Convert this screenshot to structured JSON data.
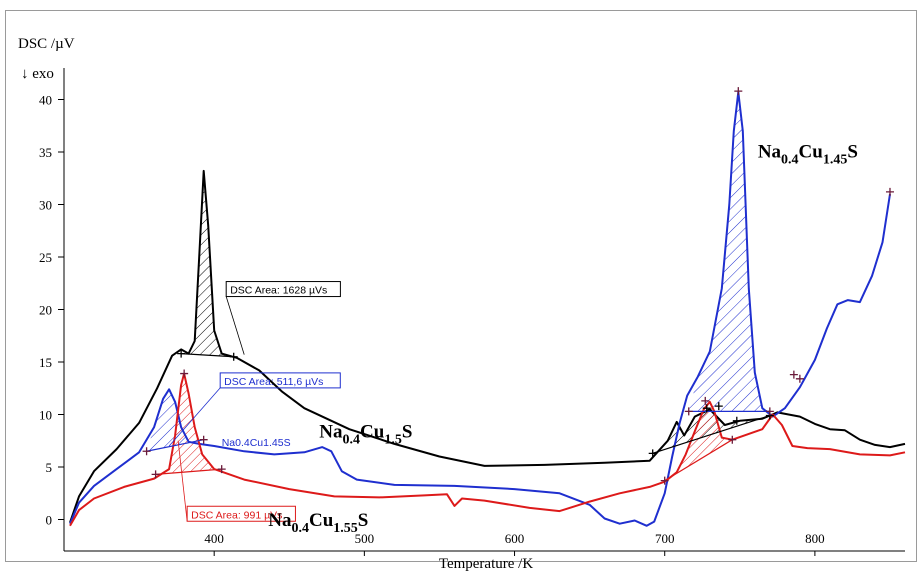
{
  "chart_data": {
    "type": "line",
    "ylabel": "DSC /µV",
    "exo_marker": "↓ exo",
    "xlabel": "Temperature /K",
    "xlim": [
      300,
      860
    ],
    "ylim": [
      -3,
      43
    ],
    "x_ticks": [
      400,
      500,
      600,
      700,
      800
    ],
    "y_ticks": [
      0,
      5,
      10,
      15,
      20,
      25,
      30,
      35,
      40
    ],
    "colors": {
      "black": "#000000",
      "blue": "#1f2fcf",
      "red": "#dd1a1a"
    },
    "series": [
      {
        "color": "black",
        "label": {
          "base": "Na",
          "sub1": "0.4",
          "mid": "Cu",
          "sub2": "1.5",
          "tail": "S"
        },
        "label_anchor": [
          470,
          7.8
        ],
        "points": [
          [
            304,
            -0.3
          ],
          [
            310,
            2.2
          ],
          [
            320,
            4.6
          ],
          [
            335,
            6.7
          ],
          [
            350,
            9.2
          ],
          [
            362,
            12.5
          ],
          [
            372,
            15.6
          ],
          [
            378,
            16.2
          ],
          [
            383,
            15.8
          ],
          [
            387,
            17
          ],
          [
            390,
            25
          ],
          [
            393,
            33.2
          ],
          [
            396,
            28
          ],
          [
            400,
            18
          ],
          [
            405,
            15.8
          ],
          [
            415,
            15.4
          ],
          [
            430,
            14.2
          ],
          [
            445,
            12.2
          ],
          [
            460,
            10.6
          ],
          [
            490,
            8.6
          ],
          [
            520,
            7.2
          ],
          [
            550,
            6
          ],
          [
            580,
            5.1
          ],
          [
            620,
            5.2
          ],
          [
            660,
            5.4
          ],
          [
            690,
            5.6
          ],
          [
            702,
            7.5
          ],
          [
            708,
            9.3
          ],
          [
            713,
            8
          ],
          [
            720,
            9.8
          ],
          [
            730,
            10.5
          ],
          [
            740,
            9
          ],
          [
            750,
            9.4
          ],
          [
            765,
            9.6
          ],
          [
            775,
            10.2
          ],
          [
            790,
            9.8
          ],
          [
            800,
            9.1
          ],
          [
            810,
            8.6
          ],
          [
            820,
            8.5
          ],
          [
            830,
            7.6
          ],
          [
            840,
            7.1
          ],
          [
            850,
            6.9
          ],
          [
            860,
            7.2
          ]
        ]
      },
      {
        "color": "blue",
        "label": {
          "base": "Na",
          "sub1": "0.4",
          "mid": "Cu",
          "sub2": "1.45",
          "tail": "S"
        },
        "label_anchor": [
          762,
          34.5
        ],
        "small_label": "Na0.4Cu1.45S",
        "small_label_anchor": [
          405,
          7
        ],
        "points": [
          [
            304,
            -0.4
          ],
          [
            310,
            1.6
          ],
          [
            320,
            3.2
          ],
          [
            335,
            4.8
          ],
          [
            350,
            6.4
          ],
          [
            360,
            8.8
          ],
          [
            366,
            11.5
          ],
          [
            370,
            12.4
          ],
          [
            374,
            11.2
          ],
          [
            378,
            8.8
          ],
          [
            383,
            7.4
          ],
          [
            390,
            7.2
          ],
          [
            400,
            7
          ],
          [
            420,
            6.5
          ],
          [
            440,
            6.2
          ],
          [
            460,
            6.4
          ],
          [
            472,
            6.9
          ],
          [
            478,
            6.5
          ],
          [
            485,
            4.6
          ],
          [
            495,
            3.8
          ],
          [
            520,
            3.3
          ],
          [
            560,
            3.2
          ],
          [
            600,
            2.9
          ],
          [
            630,
            2.5
          ],
          [
            650,
            1.4
          ],
          [
            660,
            0.1
          ],
          [
            670,
            -0.4
          ],
          [
            680,
            -0.1
          ],
          [
            688,
            -0.6
          ],
          [
            693,
            -0.2
          ],
          [
            700,
            2.5
          ],
          [
            705,
            6
          ],
          [
            710,
            9.2
          ],
          [
            715,
            11.8
          ],
          [
            722,
            13.6
          ],
          [
            730,
            16
          ],
          [
            738,
            22
          ],
          [
            743,
            30
          ],
          [
            746,
            37
          ],
          [
            749,
            40.7
          ],
          [
            752,
            37
          ],
          [
            756,
            22
          ],
          [
            760,
            14
          ],
          [
            765,
            10.6
          ],
          [
            772,
            9.8
          ],
          [
            780,
            10.6
          ],
          [
            790,
            12.6
          ],
          [
            800,
            15.2
          ],
          [
            808,
            18.2
          ],
          [
            815,
            20.5
          ],
          [
            822,
            20.9
          ],
          [
            830,
            20.7
          ],
          [
            838,
            23.2
          ],
          [
            845,
            26.4
          ],
          [
            850,
            31
          ]
        ]
      },
      {
        "color": "red",
        "label": {
          "base": "Na",
          "sub1": "0.4",
          "mid": "Cu",
          "sub2": "1.55",
          "tail": "S"
        },
        "label_anchor": [
          436,
          -0.6
        ],
        "points": [
          [
            304,
            -0.6
          ],
          [
            310,
            0.9
          ],
          [
            320,
            2
          ],
          [
            340,
            3.1
          ],
          [
            360,
            3.9
          ],
          [
            370,
            4.8
          ],
          [
            374,
            8
          ],
          [
            378,
            12.8
          ],
          [
            380,
            13.9
          ],
          [
            383,
            12
          ],
          [
            387,
            8.8
          ],
          [
            392,
            6.2
          ],
          [
            400,
            4.8
          ],
          [
            420,
            3.8
          ],
          [
            450,
            2.9
          ],
          [
            480,
            2.2
          ],
          [
            510,
            2.1
          ],
          [
            540,
            2.3
          ],
          [
            555,
            2.4
          ],
          [
            560,
            1.3
          ],
          [
            565,
            2
          ],
          [
            580,
            1.8
          ],
          [
            610,
            1.1
          ],
          [
            630,
            0.8
          ],
          [
            650,
            1.7
          ],
          [
            670,
            2.5
          ],
          [
            690,
            3.1
          ],
          [
            700,
            3.6
          ],
          [
            708,
            4.5
          ],
          [
            714,
            6.2
          ],
          [
            720,
            8.4
          ],
          [
            726,
            10.5
          ],
          [
            730,
            11.2
          ],
          [
            733,
            10.3
          ],
          [
            738,
            7.8
          ],
          [
            745,
            7.6
          ],
          [
            755,
            8.1
          ],
          [
            765,
            8.6
          ],
          [
            772,
            10
          ],
          [
            778,
            9
          ],
          [
            785,
            7
          ],
          [
            795,
            6.8
          ],
          [
            810,
            6.7
          ],
          [
            830,
            6.2
          ],
          [
            850,
            6.1
          ],
          [
            860,
            6.4
          ]
        ]
      }
    ],
    "integrations": [
      {
        "color": "black",
        "label": "DSC Area: 1628 µVs",
        "baseline": [
          [
            378,
            15.8
          ],
          [
            413,
            15.5
          ]
        ],
        "label_anchor": [
          408,
          21.9
        ],
        "leader_to": [
          420,
          15.7
        ]
      },
      {
        "color": "blue",
        "label": "DSC Area: 511,6 µVs",
        "baseline": [
          [
            355,
            6.5
          ],
          [
            393,
            7.6
          ]
        ],
        "label_anchor": [
          404,
          13.2
        ],
        "leader_to": [
          370,
          7.0
        ]
      },
      {
        "color": "red",
        "label": "DSC Area: 991 µVs",
        "baseline": [
          [
            361,
            4.3
          ],
          [
            405,
            4.8
          ]
        ],
        "label_anchor": [
          382,
          0.5
        ],
        "leader_to": [
          376,
          7.5
        ]
      },
      {
        "color": "blue",
        "baseline": [
          [
            716,
            10.3
          ],
          [
            770,
            10.3
          ]
        ]
      },
      {
        "color": "black",
        "baseline": [
          [
            692,
            6.3
          ],
          [
            770,
            9.9
          ]
        ]
      },
      {
        "color": "red",
        "baseline": [
          [
            700,
            3.7
          ],
          [
            745,
            7.6
          ]
        ]
      }
    ],
    "markers": [
      {
        "color": "black",
        "points": [
          [
            378,
            15.8
          ],
          [
            413,
            15.5
          ],
          [
            692,
            6.3
          ],
          [
            728,
            10.6
          ],
          [
            736,
            10.8
          ],
          [
            748,
            9.4
          ],
          [
            770,
            9.9
          ]
        ]
      },
      {
        "color": "blue",
        "points": [
          [
            355,
            6.5
          ],
          [
            393,
            7.6
          ],
          [
            716,
            10.3
          ],
          [
            749,
            40.8
          ],
          [
            770,
            10.3
          ],
          [
            790,
            13.4
          ],
          [
            850,
            31.2
          ]
        ]
      },
      {
        "color": "red",
        "points": [
          [
            361,
            4.3
          ],
          [
            380,
            13.9
          ],
          [
            405,
            4.8
          ],
          [
            700,
            3.7
          ],
          [
            727,
            11.3
          ],
          [
            745,
            7.6
          ],
          [
            786,
            13.8
          ]
        ]
      }
    ]
  }
}
